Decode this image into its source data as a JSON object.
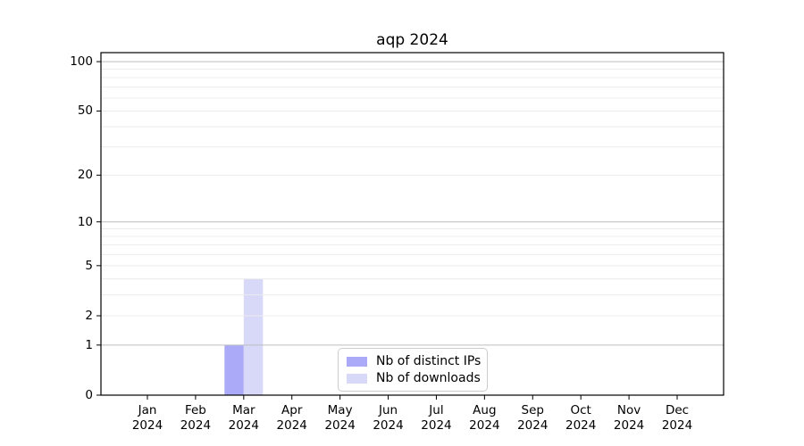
{
  "title": "aqp 2024",
  "chart_data": {
    "type": "bar",
    "title": "aqp 2024",
    "xlabel": "",
    "ylabel": "",
    "categories": [
      "Jan\n2024",
      "Feb\n2024",
      "Mar\n2024",
      "Apr\n2024",
      "May\n2024",
      "Jun\n2024",
      "Jul\n2024",
      "Aug\n2024",
      "Sep\n2024",
      "Oct\n2024",
      "Nov\n2024",
      "Dec\n2024"
    ],
    "series": [
      {
        "name": "Nb of distinct IPs",
        "color": "#aaaaf8",
        "values": [
          0,
          0,
          1,
          0,
          0,
          0,
          0,
          0,
          0,
          0,
          0,
          0
        ]
      },
      {
        "name": "Nb of downloads",
        "color": "#d8d8f8",
        "values": [
          0,
          0,
          4,
          0,
          0,
          0,
          0,
          0,
          0,
          0,
          0,
          0
        ]
      }
    ],
    "y_scale": "log1p",
    "y_ticks": [
      0,
      1,
      2,
      5,
      10,
      20,
      50,
      100
    ],
    "y_major_gridlines": [
      1,
      10,
      100
    ],
    "y_minor_gridlines": [
      2,
      3,
      4,
      5,
      6,
      7,
      8,
      9,
      20,
      30,
      40,
      50,
      60,
      70,
      80,
      90
    ],
    "ylim": [
      0,
      113.4
    ],
    "grid": true,
    "legend_position": "lower center"
  },
  "colors": {
    "major_grid": "#bdbdbd",
    "minor_grid": "#ececec",
    "axis": "#000000",
    "legend_border": "#cccccc"
  }
}
